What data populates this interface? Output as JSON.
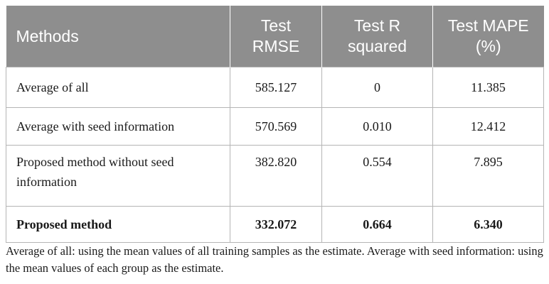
{
  "table": {
    "headers": {
      "methods": "Methods",
      "rmse": [
        "Test",
        "RMSE"
      ],
      "r2": [
        "Test R",
        "squared"
      ],
      "mape": [
        "Test MAPE",
        "(%)"
      ]
    },
    "rows": [
      {
        "method": [
          "Average of all"
        ],
        "rmse": "585.127",
        "r2": "0",
        "mape": "11.385",
        "bold": false
      },
      {
        "method": [
          "Average with seed information"
        ],
        "rmse": "570.569",
        "r2": "0.010",
        "mape": "12.412",
        "bold": false
      },
      {
        "method": [
          "Proposed method without seed",
          "information"
        ],
        "rmse": "382.820",
        "r2": "0.554",
        "mape": "7.895",
        "bold": false
      },
      {
        "method": [
          "Proposed method"
        ],
        "rmse": "332.072",
        "r2": "0.664",
        "mape": "6.340",
        "bold": true
      }
    ]
  },
  "footnote": "Average of all: using the mean values of all training samples as the estimate. Average with seed information: using the mean values of each group as the estimate.",
  "colors": {
    "header_bg": "#8e8e8e",
    "header_text": "#ffffff",
    "grid": "#b5b5b5"
  }
}
